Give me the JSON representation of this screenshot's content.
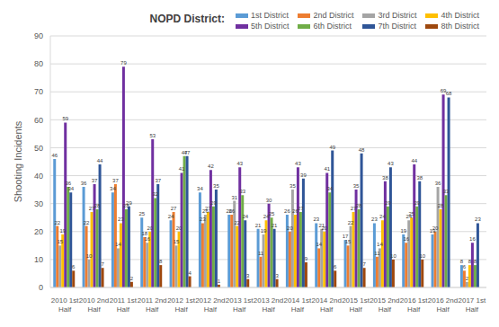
{
  "chart_data": {
    "type": "bar",
    "title": "NOPD District:",
    "y_label": "Shooting Incidents",
    "categories": [
      "2010 1st Half",
      "2010 2nd Half",
      "2011 1st Half",
      "2011 2nd Half",
      "2012 1st Half",
      "2012 2nd Half",
      "2013 1st Half",
      "2013 2nd Half",
      "2014 1st Half",
      "2014 2nd Half",
      "2015 1st Half",
      "2015 2nd Half",
      "2016 1st Half",
      "2016 2nd Half",
      "2017 1st Half"
    ],
    "series": [
      {
        "name": "1st District",
        "color": "#5B9BD5",
        "values": [
          46,
          36,
          34,
          25,
          24,
          34,
          26,
          21,
          26,
          23,
          17,
          23,
          19,
          19,
          8
        ]
      },
      {
        "name": "2nd District",
        "color": "#ED7D31",
        "values": [
          22,
          22,
          37,
          18,
          27,
          23,
          26,
          11,
          20,
          14,
          15,
          11,
          16,
          20,
          6
        ]
      },
      {
        "name": "3rd District",
        "color": "#A5A5A5",
        "values": [
          15,
          10,
          14,
          16,
          15,
          26,
          31,
          19,
          35,
          21,
          22,
          14,
          24,
          36,
          2
        ]
      },
      {
        "name": "4th District",
        "color": "#FFC000",
        "values": [
          19,
          27,
          23,
          20,
          20,
          27,
          22,
          24,
          26,
          20,
          27,
          24,
          25,
          28,
          8
        ]
      },
      {
        "name": "5th District",
        "color": "#7030A0",
        "values": [
          59,
          37,
          79,
          53,
          41,
          42,
          43,
          30,
          43,
          41,
          35,
          38,
          44,
          69,
          16
        ]
      },
      {
        "name": "6th District",
        "color": "#70AD47",
        "values": [
          36,
          28,
          28,
          32,
          47,
          29,
          33,
          25,
          27,
          34,
          28,
          29,
          29,
          33,
          8
        ]
      },
      {
        "name": "7th District",
        "color": "#2F5597",
        "values": [
          34,
          44,
          29,
          37,
          47,
          35,
          24,
          21,
          39,
          49,
          48,
          43,
          38,
          68,
          23
        ]
      },
      {
        "name": "8th District",
        "color": "#9E480E",
        "values": [
          6,
          7,
          2,
          8,
          4,
          1,
          3,
          3,
          9,
          6,
          7,
          10,
          10,
          0,
          0
        ]
      }
    ],
    "ylim": [
      0,
      90
    ],
    "yticks": [
      0,
      10,
      20,
      30,
      40,
      50,
      60,
      70,
      80,
      90
    ],
    "grid": true,
    "legend": "top",
    "data_labels": true
  }
}
